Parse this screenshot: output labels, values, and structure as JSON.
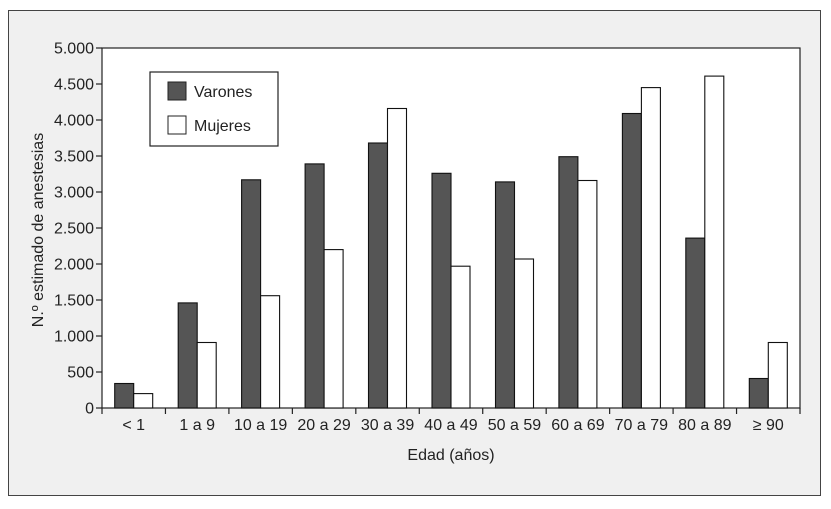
{
  "chart_data": {
    "type": "bar",
    "title": "",
    "xlabel": "Edad (años)",
    "ylabel": "N.º estimado de anestesias",
    "categories": [
      "< 1",
      "1 a 9",
      "10 a 19",
      "20 a 29",
      "30 a 39",
      "40 a 49",
      "50 a 59",
      "60 a 69",
      "70 a 79",
      "80 a 89",
      "≥ 90"
    ],
    "series": [
      {
        "name": "Varones",
        "values": [
          340,
          1460,
          3170,
          3390,
          3680,
          3260,
          3140,
          3490,
          4090,
          2360,
          410
        ],
        "color": "#555555"
      },
      {
        "name": "Mujeres",
        "values": [
          200,
          910,
          1560,
          2200,
          4160,
          1970,
          2070,
          3160,
          4450,
          4610,
          910
        ],
        "color": "#ffffff"
      }
    ],
    "ylim": [
      0,
      5000
    ],
    "yticks": [
      0,
      500,
      1000,
      1500,
      2000,
      2500,
      3000,
      3500,
      4000,
      4500,
      5000
    ],
    "ytick_labels": [
      "0",
      "500",
      "1.000",
      "1.500",
      "2.000",
      "2.500",
      "3.000",
      "3.500",
      "4.000",
      "4.500",
      "5.000"
    ],
    "grid": false,
    "legend_position": "top-left"
  }
}
